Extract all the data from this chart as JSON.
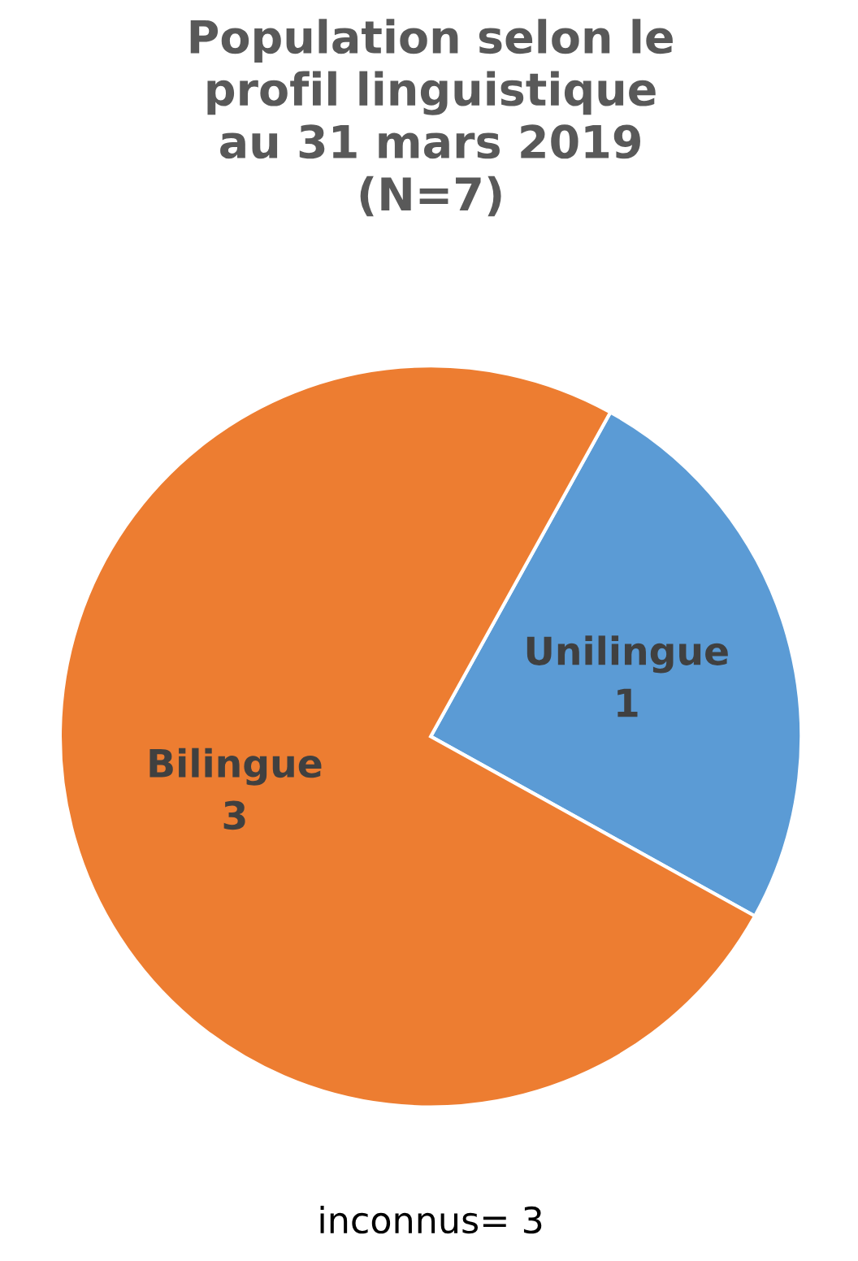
{
  "chart_data": {
    "type": "pie",
    "title": "Population selon le\nprofil linguistique\nau 31 mars 2019\n(N=7)",
    "categories": [
      "Unilingue",
      "Bilingue"
    ],
    "values": [
      1,
      3
    ],
    "colors": [
      "#5b9bd5",
      "#ed7d31"
    ],
    "data_labels": true,
    "annotations": [
      "inconnus= 3"
    ]
  }
}
